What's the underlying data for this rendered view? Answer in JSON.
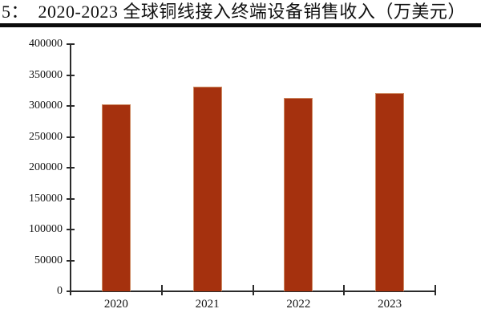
{
  "figure": {
    "title_label": "5：　2020-2023 全球铜线接入终端设备销售收入（万美元）"
  },
  "chart_data": {
    "type": "bar",
    "title": "2020-2023 全球铜线接入终端设备销售收入（万美元）",
    "categories": [
      "2020",
      "2021",
      "2022",
      "2023"
    ],
    "values": [
      303000,
      331000,
      313000,
      321000
    ],
    "series_name": "全球铜线接入终端设备销售收入",
    "unit": "万美元",
    "xlabel": "",
    "ylabel": "",
    "ylim": [
      0,
      400000
    ],
    "ytick_interval": 50000,
    "ytick_labels": [
      "0",
      "50000",
      "100000",
      "150000",
      "200000",
      "250000",
      "300000",
      "350000",
      "400000"
    ],
    "grid": false,
    "legend_position": "none",
    "bar_color": "#A5310E",
    "bar_edge_color": "#CE8B64",
    "axis_color": "#2b2b2b"
  }
}
